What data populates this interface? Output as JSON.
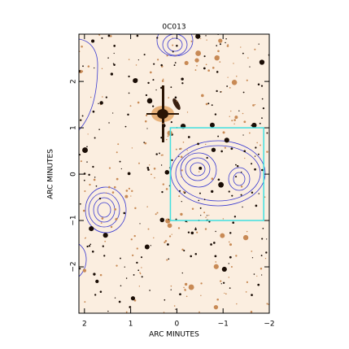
{
  "chart_data": {
    "type": "image",
    "title": "0C013",
    "x_label": "ARC MINUTES",
    "y_label": "ARC MINUTES",
    "xlim": [
      2.12,
      -2.0
    ],
    "ylim": [
      -3.0,
      3.02
    ],
    "xticks": [
      2,
      1,
      0,
      {
        "value": -1,
        "label": "−1"
      },
      {
        "value": -2,
        "label": "−2"
      }
    ],
    "yticks": [
      {
        "value": -2,
        "label": "−2"
      },
      {
        "value": -1,
        "label": "−1"
      },
      0,
      1,
      2
    ],
    "highlight_box": {
      "x": [
        0.14,
        -1.88
      ],
      "y": [
        -1,
        1
      ],
      "color": "#40e0e0"
    }
  }
}
